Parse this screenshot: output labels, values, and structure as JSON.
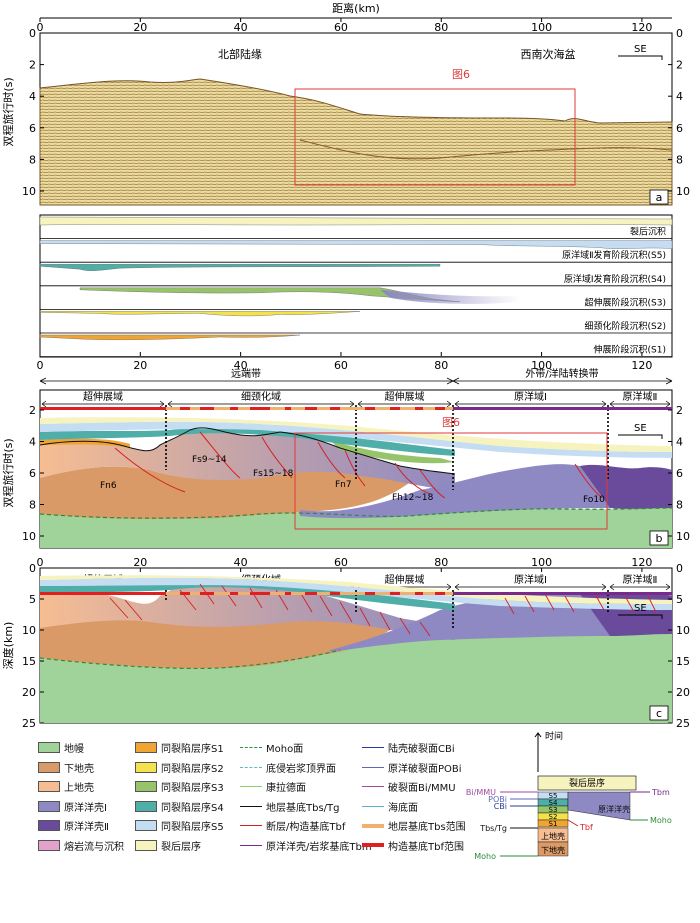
{
  "figure": {
    "top_axis_title": "距离(km)",
    "x_ticks": [
      "0",
      "20",
      "40",
      "60",
      "80",
      "100",
      "120"
    ],
    "twt_label": "双程旅行时(s)",
    "depth_label": "深度(km)",
    "time_ticks": [
      "0",
      "2",
      "4",
      "6",
      "8",
      "10"
    ],
    "time_ticks_b": [
      "2",
      "4",
      "6",
      "8",
      "10"
    ],
    "depth_ticks": [
      "0",
      "5",
      "10",
      "15",
      "20",
      "25"
    ],
    "se_label": "SE"
  },
  "panel_a": {
    "label": "a",
    "region_left": "北部陆缘",
    "region_right": "西南次海盆",
    "box_label": "图6"
  },
  "strip": {
    "layers": [
      {
        "label": "裂后沉积",
        "color": "#f6f3bf"
      },
      {
        "label": "原洋域Ⅱ发育阶段沉积(S5)",
        "color": "#c5ddf2"
      },
      {
        "label": "原洋域Ⅰ发育阶段沉积(S4)",
        "color": "#4faea8"
      },
      {
        "label": "超伸展阶段沉积(S3)",
        "color": "#97c46a"
      },
      {
        "label": "细颈化阶段沉积(S2)",
        "color": "#f3e24e"
      },
      {
        "label": "伸展阶段沉积(S1)",
        "color": "#f0a433"
      }
    ]
  },
  "panel_b": {
    "label": "b",
    "zone_far": "远端带",
    "zone_outer": "外带/洋陆转换带",
    "domains": [
      "超伸展域",
      "细颈化域",
      "超伸展域",
      "原洋域Ⅰ",
      "原洋域Ⅱ"
    ],
    "box_label": "图6",
    "faults": [
      "Fn6",
      "Fs9~14",
      "Fs15~18",
      "Fn7",
      "Fh12~18",
      "Fo10"
    ]
  },
  "panel_c": {
    "label": "c",
    "domains": [
      "超伸展域",
      "细颈化域",
      "超伸展域",
      "原洋域Ⅰ",
      "原洋域Ⅱ"
    ]
  },
  "legend": {
    "col1": [
      {
        "label": "地幔",
        "color": "#9fd39a"
      },
      {
        "label": "下地壳",
        "color": "#d99a68"
      },
      {
        "label": "上地壳",
        "color": "#f6bd92"
      },
      {
        "label": "原洋洋壳Ⅰ",
        "color": "#8e89c2"
      },
      {
        "label": "原洋洋壳Ⅱ",
        "color": "#6a4b9b"
      },
      {
        "label": "熔岩流与沉积",
        "color": "#e3a2cc"
      }
    ],
    "col2": [
      {
        "label": "同裂陷层序S1",
        "color": "#f0a433"
      },
      {
        "label": "同裂陷层序S2",
        "color": "#f3e24e"
      },
      {
        "label": "同裂陷层序S3",
        "color": "#97c46a"
      },
      {
        "label": "同裂陷层序S4",
        "color": "#4faea8"
      },
      {
        "label": "同裂陷层序S5",
        "color": "#c5ddf2"
      },
      {
        "label": "裂后层序",
        "color": "#f6f3bf"
      }
    ],
    "col3": [
      {
        "label": "Moho面",
        "color": "#2e8b3a"
      },
      {
        "label": "底侵岩浆顶界面",
        "color": "#5fb8c8"
      },
      {
        "label": "康拉德面",
        "color": "#8fcf6a"
      },
      {
        "label": "地层基底Tbs/Tg",
        "color": "#111111"
      },
      {
        "label": "断层/构造基底Tbf",
        "color": "#d42020"
      },
      {
        "label": "原洋洋壳/岩浆基底Tbm",
        "color": "#7a2a8a"
      }
    ],
    "col4": [
      {
        "label": "陆壳破裂面CBi",
        "color": "#2a3b9a"
      },
      {
        "label": "原洋破裂面POBi",
        "color": "#5a6ab8"
      },
      {
        "label": "破裂面Bi/MMU",
        "color": "#a04aa0"
      },
      {
        "label": "海底面",
        "color": "#5fb0d0"
      },
      {
        "label": "地层基底Tbs范围",
        "color": "#f0b070"
      },
      {
        "label": "构造基底Tbf范围",
        "color": "#e02020"
      }
    ]
  },
  "inset": {
    "time": "时间",
    "post": "裂后层序",
    "s5": "S5",
    "s4": "S4",
    "s3": "S3",
    "s2": "S2",
    "s1": "S1",
    "upper": "上地壳",
    "lower": "下地壳",
    "oceanic": "原洋洋壳",
    "bi": "Bi/MMU",
    "pobi": "POBi",
    "cbi": "CBi",
    "tbs": "Tbs/Tg",
    "tbf": "Tbf",
    "tbm": "Tbm",
    "moho": "Moho",
    "moho_left": "Moho"
  }
}
